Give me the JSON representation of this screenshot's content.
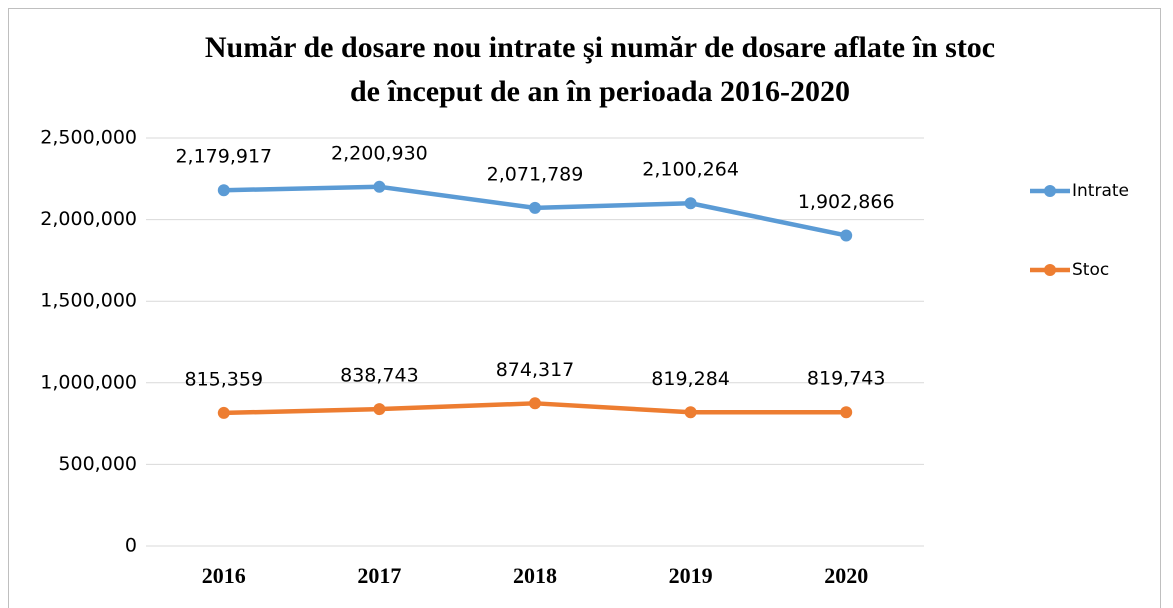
{
  "chart_data": {
    "type": "line",
    "title": [
      "Număr de dosare nou intrate şi număr de dosare aflate în stoc",
      "de început de an în perioada 2016-2020"
    ],
    "categories": [
      "2016",
      "2017",
      "2018",
      "2019",
      "2020"
    ],
    "series": [
      {
        "name": "Intrate",
        "color": "#5b9bd5",
        "values": [
          2179917,
          2200930,
          2071789,
          2100264,
          1902866
        ],
        "value_labels": [
          "2,179,917",
          "2,200,930",
          "2,071,789",
          "2,100,264",
          "1,902,866"
        ]
      },
      {
        "name": "Stoc",
        "color": "#ed7d31",
        "values": [
          815359,
          838743,
          874317,
          819284,
          819743
        ],
        "value_labels": [
          "815,359",
          "838,743",
          "874,317",
          "819,284",
          "819,743"
        ]
      }
    ],
    "ylim": [
      0,
      2500000
    ],
    "yticks": [
      0,
      {
        "value": 500000,
        "label": "500,000"
      },
      {
        "value": 1000000,
        "label": "1,000,000"
      },
      {
        "value": 1500000,
        "label": "1,500,000"
      },
      {
        "value": 2000000,
        "label": "2,000,000"
      },
      {
        "value": 2500000,
        "label": "2,500,000"
      }
    ],
    "grid": true,
    "legend": "right"
  }
}
